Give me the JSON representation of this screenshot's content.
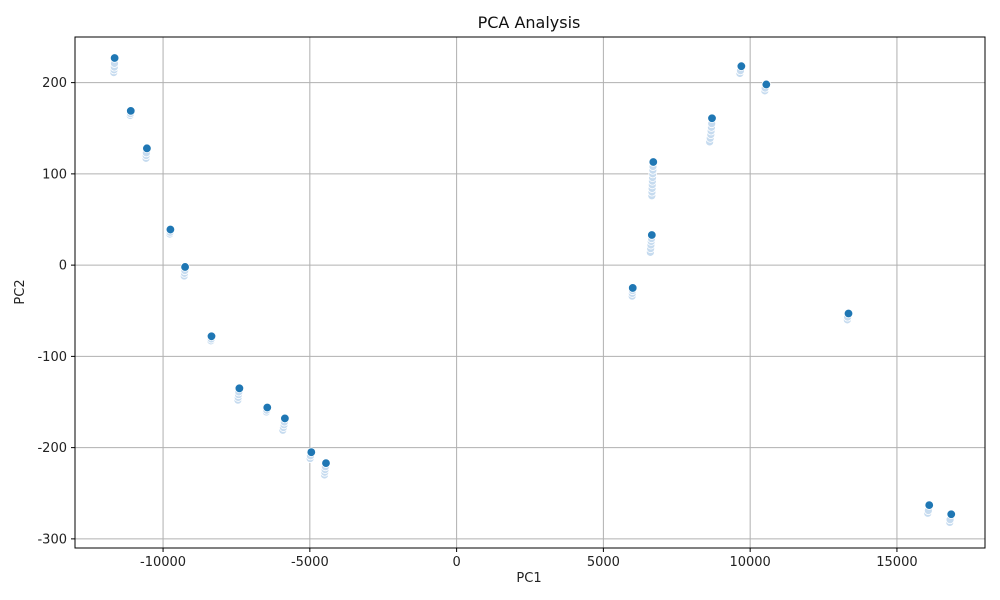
{
  "chart_data": {
    "type": "scatter",
    "title": "PCA Analysis",
    "xlabel": "PC1",
    "ylabel": "PC2",
    "xlim": [
      -13000,
      18000
    ],
    "ylim": [
      -310,
      250
    ],
    "x_ticks": [
      -10000,
      -5000,
      0,
      5000,
      10000,
      15000
    ],
    "x_tick_labels": [
      "-10000",
      "-5000",
      "0",
      "5000",
      "10000",
      "15000"
    ],
    "y_ticks": [
      -300,
      -200,
      -100,
      0,
      100,
      200
    ],
    "y_tick_labels": [
      "-300",
      "-200",
      "-100",
      "0",
      "100",
      "200"
    ],
    "grid": true,
    "legend": "none",
    "colors": {
      "primary": "#1f77b4",
      "faded": "#c6dbef",
      "grid": "#b0b0b0",
      "axis": "#000000"
    },
    "series": [
      {
        "role": "highlighted",
        "points": [
          {
            "x": -11650,
            "y": 227
          },
          {
            "x": -11100,
            "y": 169
          },
          {
            "x": -10550,
            "y": 128
          },
          {
            "x": -9750,
            "y": 39
          },
          {
            "x": -9250,
            "y": -2
          },
          {
            "x": -8350,
            "y": -78
          },
          {
            "x": -7400,
            "y": -135
          },
          {
            "x": -6450,
            "y": -156
          },
          {
            "x": -5850,
            "y": -168
          },
          {
            "x": -4950,
            "y": -205
          },
          {
            "x": -4450,
            "y": -217
          },
          {
            "x": 6000,
            "y": -25
          },
          {
            "x": 6650,
            "y": 33
          },
          {
            "x": 6700,
            "y": 113
          },
          {
            "x": 8700,
            "y": 161
          },
          {
            "x": 9700,
            "y": 218
          },
          {
            "x": 10550,
            "y": 198
          },
          {
            "x": 13350,
            "y": -53
          },
          {
            "x": 16100,
            "y": -263
          },
          {
            "x": 16850,
            "y": -273
          }
        ]
      },
      {
        "role": "faded",
        "points": [
          {
            "x": -11680,
            "y": 211
          },
          {
            "x": -11670,
            "y": 214
          },
          {
            "x": -11660,
            "y": 217
          },
          {
            "x": -11655,
            "y": 221
          },
          {
            "x": -11120,
            "y": 164
          },
          {
            "x": -11110,
            "y": 166
          },
          {
            "x": -10580,
            "y": 117
          },
          {
            "x": -10575,
            "y": 120
          },
          {
            "x": -10570,
            "y": 123
          },
          {
            "x": -9770,
            "y": 34
          },
          {
            "x": -9760,
            "y": 36
          },
          {
            "x": -9280,
            "y": -12
          },
          {
            "x": -9270,
            "y": -9
          },
          {
            "x": -9260,
            "y": -6
          },
          {
            "x": -8370,
            "y": -83
          },
          {
            "x": -8360,
            "y": -81
          },
          {
            "x": -7450,
            "y": -148
          },
          {
            "x": -7440,
            "y": -145
          },
          {
            "x": -7430,
            "y": -142
          },
          {
            "x": -7420,
            "y": -139
          },
          {
            "x": -6480,
            "y": -161
          },
          {
            "x": -6470,
            "y": -159
          },
          {
            "x": -5920,
            "y": -181
          },
          {
            "x": -5900,
            "y": -178
          },
          {
            "x": -5880,
            "y": -175
          },
          {
            "x": -5870,
            "y": -172
          },
          {
            "x": -4990,
            "y": -212
          },
          {
            "x": -4980,
            "y": -209
          },
          {
            "x": -4500,
            "y": -230
          },
          {
            "x": -4490,
            "y": -227
          },
          {
            "x": -4480,
            "y": -224
          },
          {
            "x": -4470,
            "y": -221
          },
          {
            "x": 5980,
            "y": -34
          },
          {
            "x": 5985,
            "y": -31
          },
          {
            "x": 5990,
            "y": -28
          },
          {
            "x": 6600,
            "y": 14
          },
          {
            "x": 6610,
            "y": 18
          },
          {
            "x": 6620,
            "y": 22
          },
          {
            "x": 6630,
            "y": 26
          },
          {
            "x": 6640,
            "y": 29
          },
          {
            "x": 6650,
            "y": 76
          },
          {
            "x": 6655,
            "y": 80
          },
          {
            "x": 6660,
            "y": 84
          },
          {
            "x": 6665,
            "y": 88
          },
          {
            "x": 6670,
            "y": 92
          },
          {
            "x": 6675,
            "y": 96
          },
          {
            "x": 6680,
            "y": 100
          },
          {
            "x": 6685,
            "y": 104
          },
          {
            "x": 6690,
            "y": 108
          },
          {
            "x": 8620,
            "y": 135
          },
          {
            "x": 8640,
            "y": 139
          },
          {
            "x": 8660,
            "y": 143
          },
          {
            "x": 8670,
            "y": 147
          },
          {
            "x": 8680,
            "y": 151
          },
          {
            "x": 8690,
            "y": 155
          },
          {
            "x": 9650,
            "y": 210
          },
          {
            "x": 9670,
            "y": 213
          },
          {
            "x": 10500,
            "y": 191
          },
          {
            "x": 10510,
            "y": 194
          },
          {
            "x": 13310,
            "y": -60
          },
          {
            "x": 13320,
            "y": -57
          },
          {
            "x": 16050,
            "y": -272
          },
          {
            "x": 16070,
            "y": -269
          },
          {
            "x": 16800,
            "y": -282
          },
          {
            "x": 16810,
            "y": -279
          }
        ]
      }
    ]
  }
}
